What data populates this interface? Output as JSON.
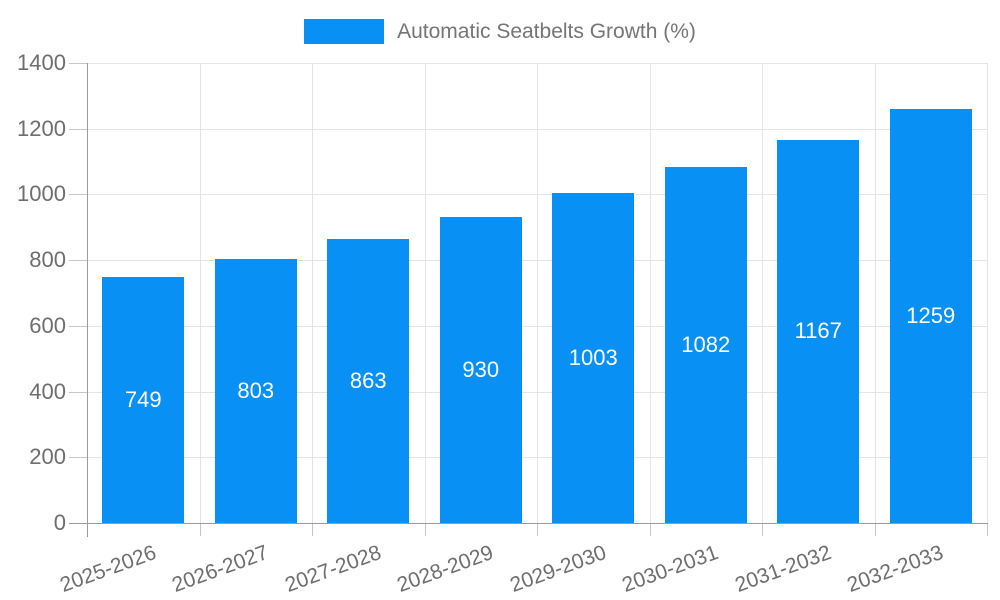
{
  "chart_data": {
    "type": "bar",
    "title": "Automatic Seatbelts Growth (%)",
    "categories": [
      "2025-2026",
      "2026-2027",
      "2027-2028",
      "2028-2029",
      "2029-2030",
      "2030-2031",
      "2031-2032",
      "2032-2033"
    ],
    "values": [
      749,
      803,
      863,
      930,
      1003,
      1082,
      1167,
      1259
    ],
    "xlabel": "",
    "ylabel": "",
    "ylim": [
      0,
      1400
    ],
    "yticks": [
      0,
      200,
      400,
      600,
      800,
      1000,
      1200,
      1400
    ],
    "grid": true,
    "legend_position": "top",
    "x_label_rotation_deg": -20,
    "colors": {
      "bar": "#0890f4",
      "value_label": "#ffffff",
      "axis_line": "#9b9b9b",
      "gridline": "#e4e4e4",
      "tick": "#c6c6c6",
      "axis_text": "#6e6e6e",
      "legend_text": "#757575",
      "background": "#ffffff"
    }
  }
}
